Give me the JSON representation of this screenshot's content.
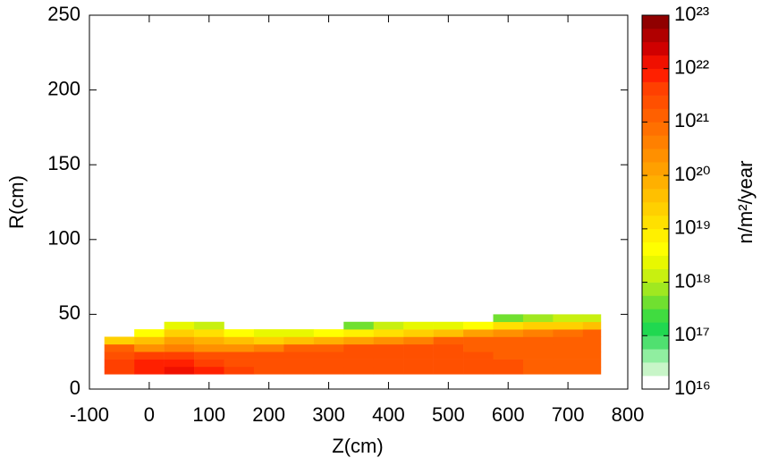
{
  "chart_data": {
    "type": "heatmap",
    "xlabel": "Z(cm)",
    "ylabel": "R(cm)",
    "colorbar_label": "n/m²/year",
    "xlim": [
      -100,
      800
    ],
    "xticks": [
      -100,
      0,
      100,
      200,
      300,
      400,
      500,
      600,
      700,
      800
    ],
    "ylim": [
      0,
      250
    ],
    "yticks": [
      0,
      50,
      100,
      150,
      200,
      250
    ],
    "clim": [
      1e+16,
      1e+23
    ],
    "clog": true,
    "cticks": [
      {
        "value": 1e+16,
        "label": "10¹⁶"
      },
      {
        "value": 1e+17,
        "label": "10¹⁷"
      },
      {
        "value": 1e+18,
        "label": "10¹⁸"
      },
      {
        "value": 1e+19,
        "label": "10¹⁹"
      },
      {
        "value": 1e+20,
        "label": "10²⁰"
      },
      {
        "value": 1e+21,
        "label": "10²¹"
      },
      {
        "value": 1e+22,
        "label": "10²²"
      },
      {
        "value": 1e+23,
        "label": "10²³"
      }
    ],
    "colorscale": [
      "#ffffff",
      "#c8f5c8",
      "#90eea0",
      "#50e070",
      "#20d850",
      "#40dc40",
      "#70e030",
      "#a0e820",
      "#c8f010",
      "#e8f800",
      "#ffff00",
      "#fff000",
      "#ffe000",
      "#ffd000",
      "#ffc000",
      "#ffb000",
      "#ffa000",
      "#ff9000",
      "#ff8000",
      "#ff7000",
      "#ff6000",
      "#ff5000",
      "#ff4000",
      "#ff2000",
      "#f01000",
      "#d00000",
      "#b00000",
      "#900000"
    ],
    "x_edges": [
      -75,
      -25,
      25,
      75,
      125,
      175,
      225,
      275,
      325,
      375,
      425,
      475,
      525,
      575,
      625,
      675,
      725,
      755
    ],
    "y_edges": [
      10,
      15,
      20,
      25,
      30,
      35,
      40,
      45,
      50
    ],
    "values": [
      [
        5e+21,
        8e+21,
        1e+22,
        6e+21,
        4e+21,
        3e+21,
        3e+21,
        3e+21,
        3e+21,
        2.5e+21,
        2.5e+21,
        2e+21,
        2e+21,
        2e+21,
        1.5e+21,
        1.5e+21,
        1.5e+21
      ],
      [
        4e+21,
        7e+21,
        8e+21,
        5e+21,
        3e+21,
        3e+21,
        3e+21,
        3e+21,
        2.5e+21,
        2.5e+21,
        2e+21,
        2e+21,
        2e+21,
        2e+21,
        1.5e+21,
        1.5e+21,
        1.5e+21
      ],
      [
        3e+21,
        4e+21,
        4e+21,
        3e+21,
        3e+21,
        2.5e+21,
        2.5e+21,
        2.5e+21,
        2.5e+21,
        2e+21,
        2e+21,
        2e+21,
        2e+21,
        1.5e+21,
        1.5e+21,
        1.5e+21,
        1.5e+21
      ],
      [
        1e+21,
        3e+20,
        5e+20,
        3e+20,
        3e+20,
        5e+20,
        1e+21,
        1.5e+21,
        2e+21,
        2e+21,
        2e+21,
        2e+21,
        1.5e+21,
        1.5e+21,
        1.5e+21,
        1.5e+21,
        1.5e+21
      ],
      [
        2e+19,
        5e+19,
        1e+20,
        8e+19,
        4e+19,
        3e+19,
        4e+19,
        6e+19,
        1e+20,
        3e+20,
        5e+20,
        1e+21,
        1.5e+21,
        1.5e+21,
        1.5e+21,
        1.5e+21,
        1.5e+21
      ],
      [
        null,
        5e+18,
        2e+19,
        1e+19,
        5e+18,
        3e+18,
        3e+18,
        5e+18,
        6e+18,
        1e+19,
        2e+19,
        5e+19,
        1e+20,
        3e+20,
        5e+20,
        8e+20,
        1e+21
      ],
      [
        null,
        null,
        2e+18,
        1e+18,
        null,
        null,
        null,
        null,
        5e+17,
        1e+18,
        2e+18,
        3e+18,
        5e+18,
        1e+19,
        2e+19,
        3e+19,
        5e+19
      ],
      [
        null,
        null,
        null,
        null,
        null,
        null,
        null,
        null,
        null,
        null,
        null,
        null,
        null,
        5e+17,
        8e+17,
        1e+18,
        1e+18
      ]
    ]
  }
}
